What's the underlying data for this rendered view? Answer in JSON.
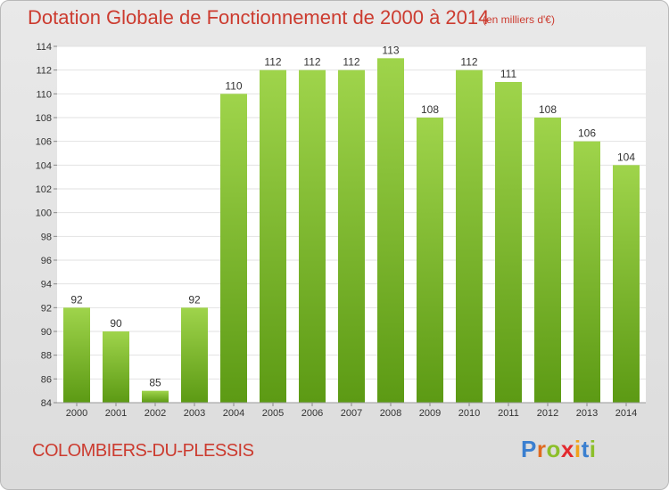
{
  "title": "Dotation Globale de Fonctionnement de 2000 à 2014",
  "subtitle": "(en milliers d'€)",
  "commune": "COLOMBIERS-DU-PLESSIS",
  "logo": {
    "text": "Proxiti",
    "letter_colors": [
      "#3a7fd0",
      "#e06a1f",
      "#8cbf2a",
      "#e3292e",
      "#f0a21a",
      "#3a7fd0",
      "#8cbf2a"
    ]
  },
  "colors": {
    "bar_top": "#9fd44b",
    "bar_bottom": "#5c9a14",
    "accent": "#cc3b2f"
  },
  "chart_data": {
    "type": "bar",
    "title": "Dotation Globale de Fonctionnement de 2000 à 2014",
    "subtitle": "(en milliers d'€)",
    "xlabel": "",
    "ylabel": "",
    "categories": [
      "2000",
      "2001",
      "2002",
      "2003",
      "2004",
      "2005",
      "2006",
      "2007",
      "2008",
      "2009",
      "2010",
      "2011",
      "2012",
      "2013",
      "2014"
    ],
    "values": [
      92,
      90,
      85,
      92,
      110,
      112,
      112,
      112,
      113,
      108,
      112,
      111,
      108,
      106,
      104
    ],
    "ylim": [
      84,
      114
    ],
    "yticks": [
      84,
      86,
      88,
      90,
      92,
      94,
      96,
      98,
      100,
      102,
      104,
      106,
      108,
      110,
      112,
      114
    ],
    "grid": true
  }
}
